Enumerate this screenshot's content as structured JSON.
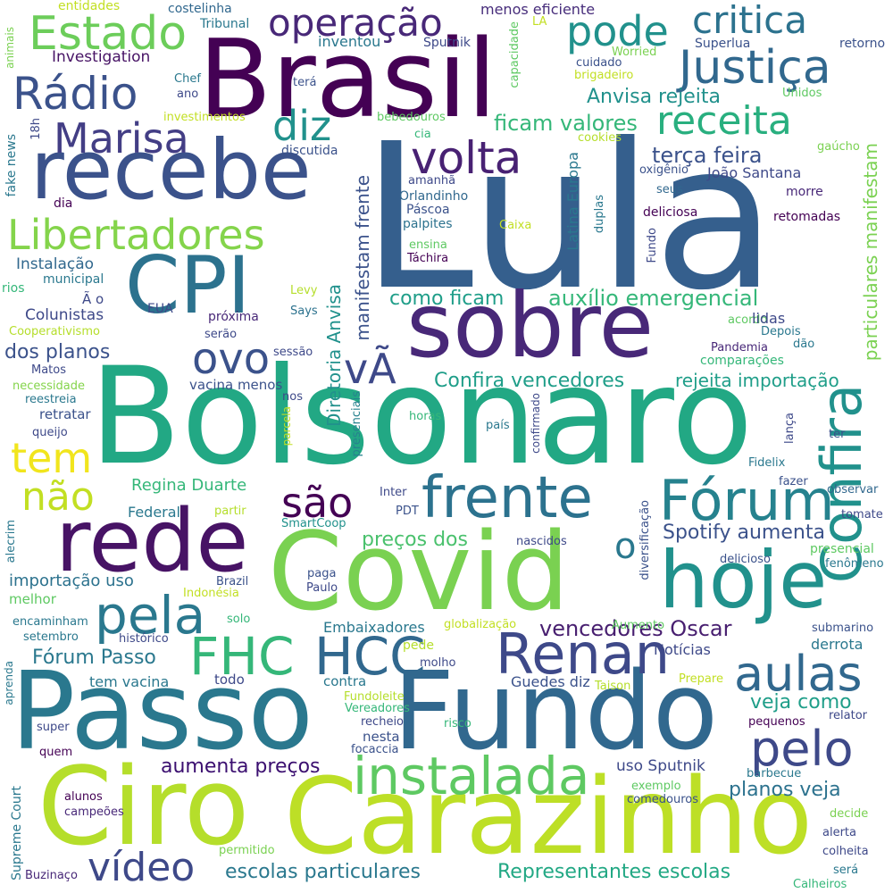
{
  "words": [
    {
      "text": "Bolsonaro",
      "color": "#22a884"
    },
    {
      "text": "Lula",
      "color": "#355f8d"
    },
    {
      "text": "Brasil",
      "color": "#440154"
    },
    {
      "text": "Passo",
      "color": "#2a788e"
    },
    {
      "text": "Fundo",
      "color": "#31688e"
    },
    {
      "text": "Carazinho",
      "color": "#bddf26"
    },
    {
      "text": "Covid",
      "color": "#7ad151"
    },
    {
      "text": "Ciro",
      "color": "#b5de2b"
    },
    {
      "text": "recebe",
      "color": "#3b528b"
    },
    {
      "text": "rede",
      "color": "#471365"
    },
    {
      "text": "sobre",
      "color": "#482878"
    },
    {
      "text": "CPI",
      "color": "#2c728e"
    },
    {
      "text": "hoje",
      "color": "#21918c"
    },
    {
      "text": "Confira",
      "color": "#21918c"
    },
    {
      "text": "frente",
      "color": "#2c728e"
    },
    {
      "text": "Fórum",
      "color": "#26828e"
    },
    {
      "text": "Renan",
      "color": "#3e4989"
    },
    {
      "text": "instalada",
      "color": "#5ec962"
    },
    {
      "text": "pela",
      "color": "#2a788e"
    },
    {
      "text": "HCC",
      "color": "#31688e"
    },
    {
      "text": "FHC",
      "color": "#35b779"
    },
    {
      "text": "aulas",
      "color": "#31688e"
    },
    {
      "text": "pelo",
      "color": "#3e4989"
    },
    {
      "text": "Justiça",
      "color": "#31688e"
    },
    {
      "text": "Estado",
      "color": "#6ccd5a"
    },
    {
      "text": "Rádio",
      "color": "#3b528b"
    },
    {
      "text": "operação",
      "color": "#482878"
    },
    {
      "text": "pode",
      "color": "#21918c"
    },
    {
      "text": "critica",
      "color": "#2c728e"
    },
    {
      "text": "receita",
      "color": "#29af7f"
    },
    {
      "text": "Marisa",
      "color": "#433e85"
    },
    {
      "text": "diz",
      "color": "#21918c"
    },
    {
      "text": "volta",
      "color": "#482173"
    },
    {
      "text": "Libertadores",
      "color": "#84d44b"
    },
    {
      "text": "ovo",
      "color": "#3b528b"
    },
    {
      "text": "vÃ",
      "color": "#3e4989"
    },
    {
      "text": "tem",
      "color": "#f1e51d"
    },
    {
      "text": "não",
      "color": "#c2df23"
    },
    {
      "text": "são",
      "color": "#440154"
    },
    {
      "text": "o",
      "color": "#2a788e"
    },
    {
      "text": "vídeo",
      "color": "#3e4989"
    },
    {
      "text": "terça feira",
      "color": "#3b528b"
    },
    {
      "text": "ficam valores",
      "color": "#35b779"
    },
    {
      "text": "Anvisa rejeita",
      "color": "#21918c"
    },
    {
      "text": "auxílio emergencial",
      "color": "#35b779"
    },
    {
      "text": "como ficam",
      "color": "#1f9e89"
    },
    {
      "text": "Confira vencedores",
      "color": "#1f9e89"
    },
    {
      "text": "rejeita importação",
      "color": "#1f9e89"
    },
    {
      "text": "Spotify aumenta",
      "color": "#3b528b"
    },
    {
      "text": "preços dos",
      "color": "#4ac16d"
    },
    {
      "text": "vencedores Oscar",
      "color": "#481f70"
    },
    {
      "text": "Fórum Passo",
      "color": "#2a788e"
    },
    {
      "text": "veja como",
      "color": "#1f9e89"
    },
    {
      "text": "aumenta preços",
      "color": "#3b0f70"
    },
    {
      "text": "planos veja",
      "color": "#2c728e"
    },
    {
      "text": "uso Sputnik",
      "color": "#3e4989"
    },
    {
      "text": "escolas particulares",
      "color": "#2a788e"
    },
    {
      "text": "Representantes escolas",
      "color": "#22a884"
    },
    {
      "text": "Regina Duarte",
      "color": "#35b779"
    },
    {
      "text": "importação uso",
      "color": "#2c728e"
    },
    {
      "text": "dos planos",
      "color": "#3b528b"
    },
    {
      "text": "Instalação",
      "color": "#31688e"
    },
    {
      "text": "Colunistas",
      "color": "#3e4989"
    },
    {
      "text": "Investigation",
      "color": "#471365"
    },
    {
      "text": "inventou",
      "color": "#2a788e"
    },
    {
      "text": "menos eficiente",
      "color": "#472d7b"
    },
    {
      "text": "Superlua",
      "color": "#3b528b"
    },
    {
      "text": "retorno",
      "color": "#3b528b"
    },
    {
      "text": "Sputnik",
      "color": "#3e4989"
    },
    {
      "text": "Tribunal",
      "color": "#2a788e"
    },
    {
      "text": "costelinha",
      "color": "#31688e"
    },
    {
      "text": "entidades",
      "color": "#c2df23"
    },
    {
      "text": "animais",
      "color": "#7ad151"
    },
    {
      "text": "Worried",
      "color": "#7ad151"
    },
    {
      "text": "brigadeiro",
      "color": "#c2df23"
    },
    {
      "text": "cuidado",
      "color": "#3b528b"
    },
    {
      "text": "Unidos",
      "color": "#5ec962"
    },
    {
      "text": "Chef",
      "color": "#2a788e"
    },
    {
      "text": "ano",
      "color": "#3e4989"
    },
    {
      "text": "terá",
      "color": "#3b528b"
    },
    {
      "text": "investimentos",
      "color": "#c2df23"
    },
    {
      "text": "bebedouros",
      "color": "#5ec962"
    },
    {
      "text": "cia",
      "color": "#35b779"
    },
    {
      "text": "cookies",
      "color": "#b5de2b"
    },
    {
      "text": "gaúcho",
      "color": "#7ad151"
    },
    {
      "text": "fake news",
      "color": "#2a788e"
    },
    {
      "text": "18h",
      "color": "#3e4989"
    },
    {
      "text": "discutida",
      "color": "#3b528b"
    },
    {
      "text": "oxigênio",
      "color": "#3b528b"
    },
    {
      "text": "João Santana",
      "color": "#3e4989"
    },
    {
      "text": "Orlandinho",
      "color": "#31688e"
    },
    {
      "text": "amanhã",
      "color": "#3e4989"
    },
    {
      "text": "seus",
      "color": "#31688e"
    },
    {
      "text": "morre",
      "color": "#482878"
    },
    {
      "text": "Páscoa",
      "color": "#3b528b"
    },
    {
      "text": "palpites",
      "color": "#2c728e"
    },
    {
      "text": "deliciosa",
      "color": "#440154"
    },
    {
      "text": "retomadas",
      "color": "#440154"
    },
    {
      "text": "dia",
      "color": "#440154"
    },
    {
      "text": "Caixa",
      "color": "#c2df23"
    },
    {
      "text": "ensina",
      "color": "#5ec962"
    },
    {
      "text": "Táchira",
      "color": "#440154"
    },
    {
      "text": "municipal",
      "color": "#2a788e"
    },
    {
      "text": "rios",
      "color": "#35b779"
    },
    {
      "text": "EUA",
      "color": "#3e4989"
    },
    {
      "text": "Ã o",
      "color": "#3e4989"
    },
    {
      "text": "Levy",
      "color": "#b5de2b"
    },
    {
      "text": "Says",
      "color": "#2c728e"
    },
    {
      "text": "próxima",
      "color": "#482878"
    },
    {
      "text": "serão",
      "color": "#3e4989"
    },
    {
      "text": "Cooperativismo",
      "color": "#b5de2b"
    },
    {
      "text": "acordo",
      "color": "#5ec962"
    },
    {
      "text": "lidas",
      "color": "#3e4989"
    },
    {
      "text": "Depois",
      "color": "#2a788e"
    },
    {
      "text": "Pandemia",
      "color": "#482878"
    },
    {
      "text": "dão",
      "color": "#2a788e"
    },
    {
      "text": "sessão",
      "color": "#3e4989"
    },
    {
      "text": "comparações",
      "color": "#35b779"
    },
    {
      "text": "Matos",
      "color": "#3e4989"
    },
    {
      "text": "necessidade",
      "color": "#84d44b"
    },
    {
      "text": "reestreia",
      "color": "#2a788e"
    },
    {
      "text": "nos",
      "color": "#3e4989"
    },
    {
      "text": "vacina menos",
      "color": "#3b528b"
    },
    {
      "text": "retratar",
      "color": "#3b528b"
    },
    {
      "text": "queijo",
      "color": "#3e4989"
    },
    {
      "text": "horas",
      "color": "#35b779"
    },
    {
      "text": "país",
      "color": "#2a788e"
    },
    {
      "text": "parcela",
      "color": "#c2df23"
    },
    {
      "text": "presenciais",
      "color": "#26828e"
    },
    {
      "text": "confirmado",
      "color": "#3e4989"
    },
    {
      "text": "lança",
      "color": "#3e4989"
    },
    {
      "text": "ter",
      "color": "#3b528b"
    },
    {
      "text": "Fidelix",
      "color": "#2a788e"
    },
    {
      "text": "fazer",
      "color": "#3b528b"
    },
    {
      "text": "observar",
      "color": "#31688e"
    },
    {
      "text": "Inter",
      "color": "#3e4989"
    },
    {
      "text": "PDT",
      "color": "#3b528b"
    },
    {
      "text": "Federal",
      "color": "#2a788e"
    },
    {
      "text": "partir",
      "color": "#b5de2b"
    },
    {
      "text": "SmartCoop",
      "color": "#21918c"
    },
    {
      "text": "diversificação",
      "color": "#3b528b"
    },
    {
      "text": "tomate",
      "color": "#3e4989"
    },
    {
      "text": "nascidos",
      "color": "#3e4989"
    },
    {
      "text": "presencial",
      "color": "#5ec962"
    },
    {
      "text": "delicioso",
      "color": "#3b528b"
    },
    {
      "text": "fenômeno",
      "color": "#2a788e"
    },
    {
      "text": "alecrim",
      "color": "#2a788e"
    },
    {
      "text": "melhor",
      "color": "#5ec962"
    },
    {
      "text": "Indonésia",
      "color": "#c2df23"
    },
    {
      "text": "Brazil",
      "color": "#3b528b"
    },
    {
      "text": "paga",
      "color": "#3b528b"
    },
    {
      "text": "Paulo",
      "color": "#3e4989"
    },
    {
      "text": "Aumento",
      "color": "#5ec962"
    },
    {
      "text": "encaminham",
      "color": "#2a788e"
    },
    {
      "text": "solo",
      "color": "#35b779"
    },
    {
      "text": "setembro",
      "color": "#2a788e"
    },
    {
      "text": "histórico",
      "color": "#3e4989"
    },
    {
      "text": "Embaixadores",
      "color": "#2a788e"
    },
    {
      "text": "globalização",
      "color": "#c2df23"
    },
    {
      "text": "submarino",
      "color": "#3b528b"
    },
    {
      "text": "derrota",
      "color": "#2a788e"
    },
    {
      "text": "pede",
      "color": "#b5de2b"
    },
    {
      "text": "Notícias",
      "color": "#3e4989"
    },
    {
      "text": "aprenda",
      "color": "#2a788e"
    },
    {
      "text": "todo",
      "color": "#3e4989"
    },
    {
      "text": "contra",
      "color": "#2a788e"
    },
    {
      "text": "molho",
      "color": "#3e4989"
    },
    {
      "text": "Guedes diz",
      "color": "#3b528b"
    },
    {
      "text": "Prepare",
      "color": "#c2df23"
    },
    {
      "text": "tem vacina",
      "color": "#2a788e"
    },
    {
      "text": "Fundoleite",
      "color": "#b5de2b"
    },
    {
      "text": "Vereadores",
      "color": "#35b779"
    },
    {
      "text": "Taison",
      "color": "#b5de2b"
    },
    {
      "text": "recheio",
      "color": "#3e4989"
    },
    {
      "text": "super",
      "color": "#3e4989"
    },
    {
      "text": "pequenos",
      "color": "#440154"
    },
    {
      "text": "relator",
      "color": "#3e4989"
    },
    {
      "text": "nesta",
      "color": "#3b528b"
    },
    {
      "text": "risco",
      "color": "#35b779"
    },
    {
      "text": "quem",
      "color": "#440154"
    },
    {
      "text": "focaccia",
      "color": "#3b528b"
    },
    {
      "text": "barbecue",
      "color": "#2a788e"
    },
    {
      "text": "Supreme Court",
      "color": "#2a788e"
    },
    {
      "text": "exemplo",
      "color": "#5ec962"
    },
    {
      "text": "comedouros",
      "color": "#3b528b"
    },
    {
      "text": "alunos",
      "color": "#440154"
    },
    {
      "text": "campeões",
      "color": "#482878"
    },
    {
      "text": "decide",
      "color": "#7ad151"
    },
    {
      "text": "alerta",
      "color": "#3e4989"
    },
    {
      "text": "permitido",
      "color": "#7ad151"
    },
    {
      "text": "colheita",
      "color": "#3e4989"
    },
    {
      "text": "Buzinaço",
      "color": "#482878"
    },
    {
      "text": "será",
      "color": "#2a788e"
    },
    {
      "text": "Calheiros",
      "color": "#35b779"
    },
    {
      "text": "LA",
      "color": "#c2df23"
    },
    {
      "text": "capacidade",
      "color": "#5ec962"
    },
    {
      "text": "particulares manifestam",
      "color": "#7ad151"
    },
    {
      "text": "Latina Europa",
      "color": "#2a788e"
    },
    {
      "text": "duplas",
      "color": "#2a788e"
    },
    {
      "text": "Fundo",
      "color": "#3e4989"
    },
    {
      "text": "Diretoria Anvisa",
      "color": "#21918c"
    },
    {
      "text": "manifestam frente",
      "color": "#3b528b"
    }
  ]
}
